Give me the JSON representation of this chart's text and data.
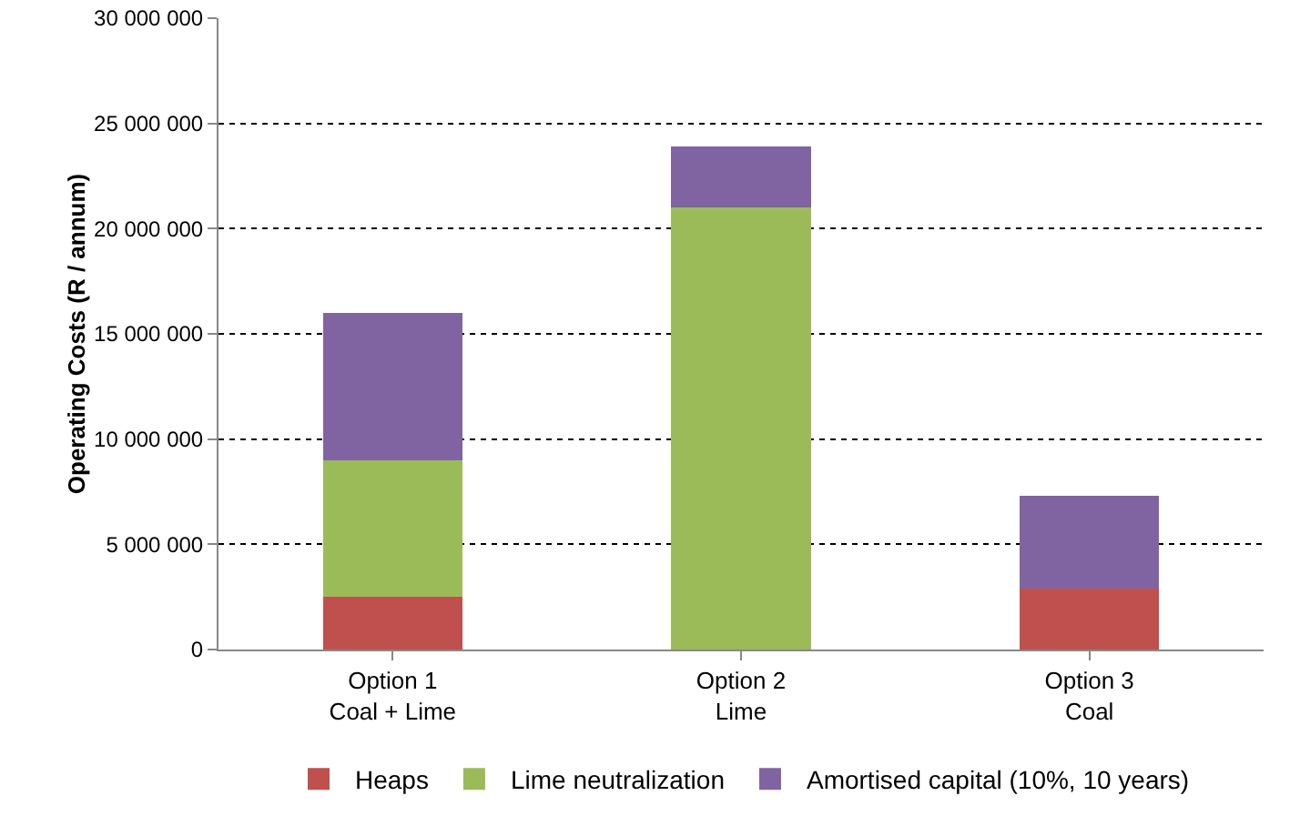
{
  "chart_data": {
    "type": "bar",
    "stacked": true,
    "ylabel": "Operating Costs (R / annum)",
    "categories": [
      "Option 1\nCoal + Lime",
      "Option 2\nLime",
      "Option 3\nCoal"
    ],
    "series": [
      {
        "name": "Heaps",
        "color": "#c0504d",
        "values": [
          2500000,
          0,
          2900000
        ]
      },
      {
        "name": "Lime neutralization",
        "color": "#9bbb59",
        "values": [
          6500000,
          21000000,
          0
        ]
      },
      {
        "name": "Amortised capital (10%, 10 years)",
        "color": "#8064a2",
        "values": [
          7000000,
          2900000,
          4400000
        ]
      }
    ],
    "ylim": [
      0,
      30000000
    ],
    "yticks": [
      {
        "value": 0,
        "label": "0"
      },
      {
        "value": 5000000,
        "label": "5 000 000"
      },
      {
        "value": 10000000,
        "label": "10 000 000"
      },
      {
        "value": 15000000,
        "label": "15 000 000"
      },
      {
        "value": 20000000,
        "label": "20 000 000"
      },
      {
        "value": 25000000,
        "label": "25 000 000"
      },
      {
        "value": 30000000,
        "label": "30 000 000"
      }
    ],
    "grid": "y",
    "legend": "bottom"
  }
}
